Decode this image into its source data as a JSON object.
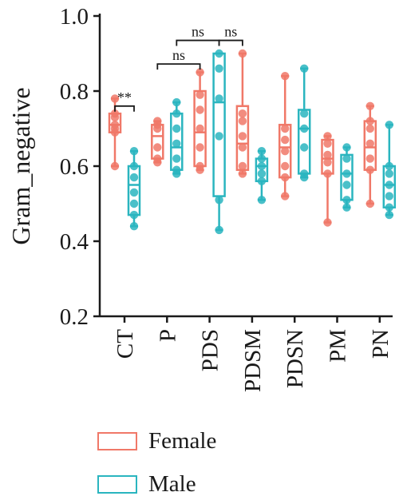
{
  "chart_data": {
    "type": "box",
    "title": "",
    "xlabel": "",
    "ylabel": "Gram_negative",
    "ylim": [
      0.2,
      1.0
    ],
    "yticks": [
      "0.2",
      "0.4",
      "0.6",
      "0.8",
      "1.0"
    ],
    "categories": [
      "CT",
      "P",
      "PDS",
      "PDSM",
      "PDSN",
      "PM",
      "PN"
    ],
    "colors": {
      "Female": "#f07868",
      "Male": "#2ab5bf"
    },
    "series": [
      {
        "name": "Female",
        "boxes": [
          {
            "category": "CT",
            "min": 0.6,
            "q1": 0.69,
            "median": 0.71,
            "q3": 0.74,
            "max": 0.78,
            "points": [
              0.6,
              0.69,
              0.7,
              0.71,
              0.73,
              0.74,
              0.78
            ]
          },
          {
            "category": "P",
            "min": 0.61,
            "q1": 0.62,
            "median": 0.68,
            "q3": 0.71,
            "max": 0.72,
            "points": [
              0.61,
              0.62,
              0.65,
              0.7,
              0.71,
              0.72
            ]
          },
          {
            "category": "PDS",
            "min": 0.59,
            "q1": 0.6,
            "median": 0.69,
            "q3": 0.8,
            "max": 0.85,
            "points": [
              0.59,
              0.6,
              0.65,
              0.7,
              0.75,
              0.79,
              0.85
            ]
          },
          {
            "category": "PDSM",
            "min": 0.58,
            "q1": 0.59,
            "median": 0.66,
            "q3": 0.76,
            "max": 0.9,
            "points": [
              0.58,
              0.6,
              0.65,
              0.68,
              0.72,
              0.74,
              0.9
            ]
          },
          {
            "category": "PDSN",
            "min": 0.52,
            "q1": 0.57,
            "median": 0.65,
            "q3": 0.71,
            "max": 0.84,
            "points": [
              0.52,
              0.57,
              0.6,
              0.64,
              0.67,
              0.7,
              0.84
            ]
          },
          {
            "category": "PM",
            "min": 0.45,
            "q1": 0.58,
            "median": 0.62,
            "q3": 0.67,
            "max": 0.68,
            "points": [
              0.45,
              0.58,
              0.61,
              0.63,
              0.66,
              0.68
            ]
          },
          {
            "category": "PN",
            "min": 0.5,
            "q1": 0.59,
            "median": 0.65,
            "q3": 0.72,
            "max": 0.76,
            "points": [
              0.5,
              0.59,
              0.62,
              0.66,
              0.7,
              0.72,
              0.76
            ]
          }
        ]
      },
      {
        "name": "Male",
        "boxes": [
          {
            "category": "CT",
            "min": 0.44,
            "q1": 0.47,
            "median": 0.55,
            "q3": 0.6,
            "max": 0.64,
            "points": [
              0.44,
              0.47,
              0.5,
              0.53,
              0.57,
              0.6,
              0.64
            ]
          },
          {
            "category": "P",
            "min": 0.58,
            "q1": 0.59,
            "median": 0.65,
            "q3": 0.74,
            "max": 0.77,
            "points": [
              0.58,
              0.59,
              0.62,
              0.66,
              0.7,
              0.74,
              0.77
            ]
          },
          {
            "category": "PDS",
            "min": 0.43,
            "q1": 0.52,
            "median": 0.77,
            "q3": 0.9,
            "max": 0.9,
            "points": [
              0.43,
              0.51,
              0.68,
              0.78,
              0.86,
              0.9
            ]
          },
          {
            "category": "PDSM",
            "min": 0.51,
            "q1": 0.56,
            "median": 0.6,
            "q3": 0.62,
            "max": 0.64,
            "points": [
              0.51,
              0.56,
              0.58,
              0.6,
              0.62,
              0.64
            ]
          },
          {
            "category": "PDSN",
            "min": 0.57,
            "q1": 0.58,
            "median": 0.7,
            "q3": 0.75,
            "max": 0.86,
            "points": [
              0.57,
              0.58,
              0.65,
              0.7,
              0.74,
              0.86
            ]
          },
          {
            "category": "PM",
            "min": 0.49,
            "q1": 0.51,
            "median": 0.58,
            "q3": 0.63,
            "max": 0.65,
            "points": [
              0.49,
              0.51,
              0.55,
              0.58,
              0.62,
              0.65
            ]
          },
          {
            "category": "PN",
            "min": 0.47,
            "q1": 0.49,
            "median": 0.55,
            "q3": 0.6,
            "max": 0.71,
            "points": [
              0.47,
              0.49,
              0.52,
              0.55,
              0.58,
              0.6,
              0.71
            ]
          }
        ]
      }
    ],
    "annotations": [
      {
        "text": "**",
        "from": {
          "category": "CT",
          "series": "Female"
        },
        "to": {
          "category": "CT",
          "series": "Male"
        },
        "y": 0.76
      },
      {
        "text": "ns",
        "from": {
          "category": "P",
          "series": "Female"
        },
        "to": {
          "category": "PDS",
          "series": "Female"
        },
        "y": 0.872
      },
      {
        "text": "ns",
        "from": {
          "category": "P",
          "series": "Male"
        },
        "to": {
          "category": "PDS",
          "series": "Male"
        },
        "y": 0.935
      },
      {
        "text": "ns",
        "from": {
          "category": "PDS",
          "series": "Male"
        },
        "to": {
          "category": "PDSM",
          "series": "Female"
        },
        "y": 0.935
      }
    ],
    "grid": false,
    "legend": "bottom-left",
    "legend_entries": [
      "Female",
      "Male"
    ]
  }
}
